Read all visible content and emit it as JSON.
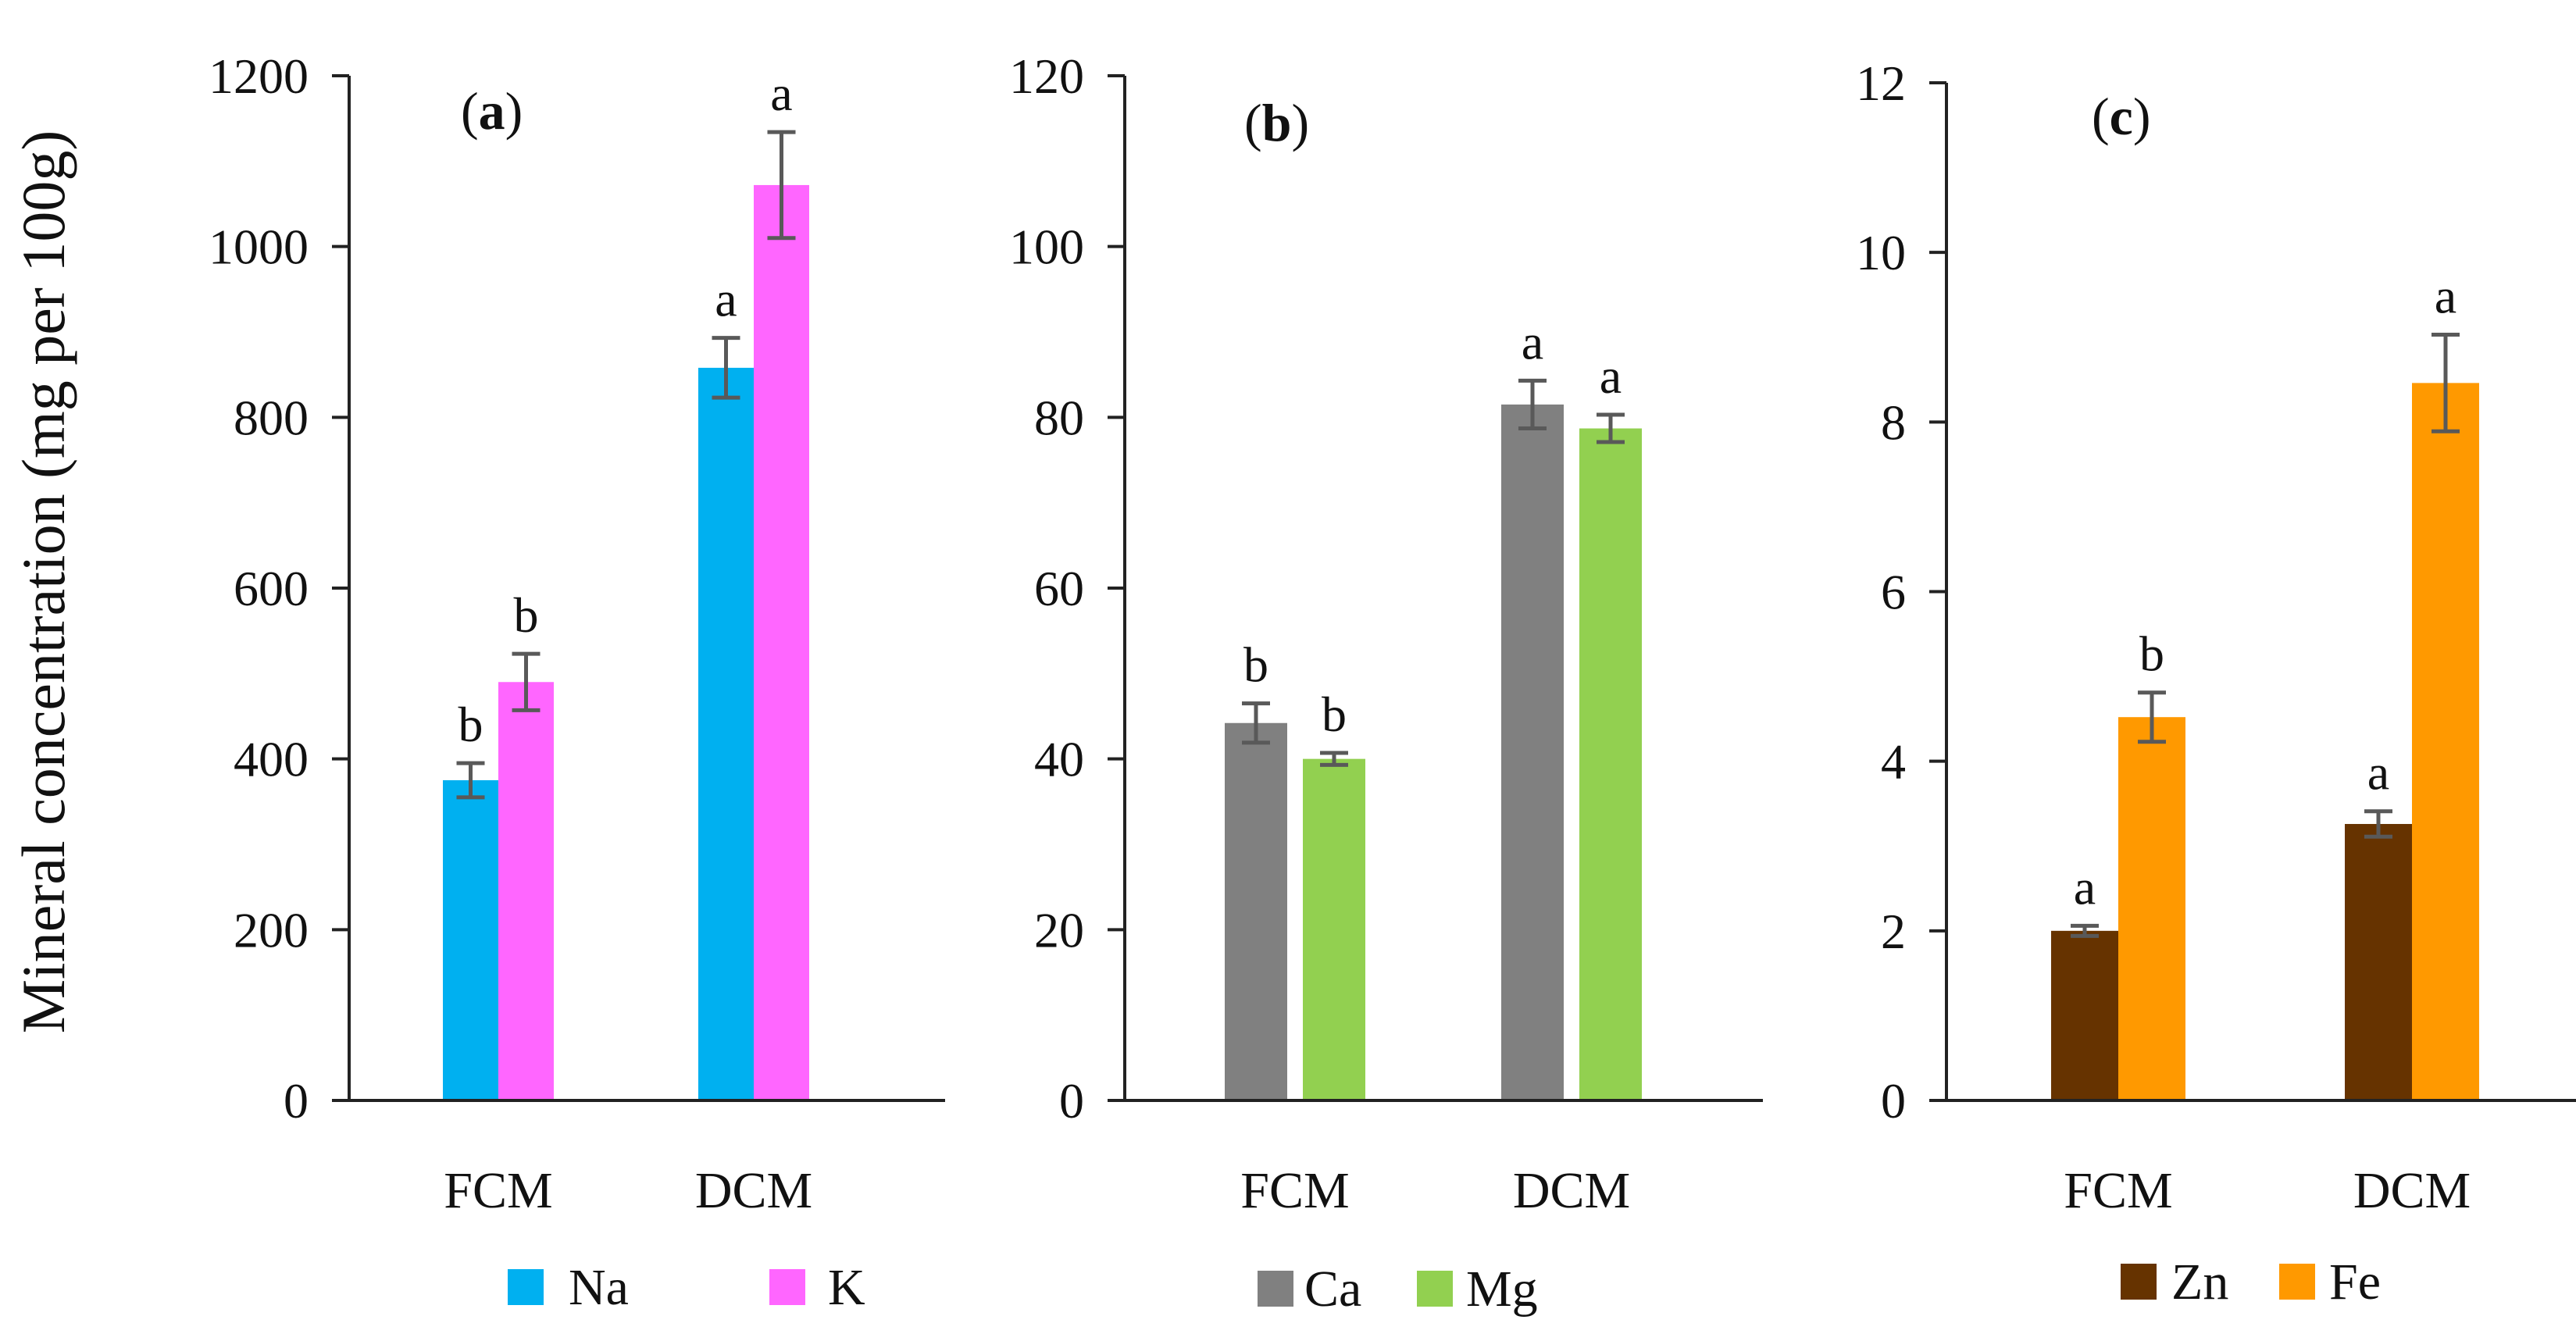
{
  "figure": {
    "ylabel": "Mineral concentration (mg per 100g)"
  },
  "chart_data": [
    {
      "type": "bar",
      "title": "(a)",
      "title_bold": "a",
      "categories": [
        "FCM",
        "DCM"
      ],
      "ylim": [
        0,
        1200
      ],
      "yticks": [
        0,
        200,
        400,
        600,
        800,
        1000,
        1200
      ],
      "ylabel": "Mineral concentration (mg per 100g)",
      "legend_position": "bottom",
      "series": [
        {
          "name": "Na",
          "color": "#00B0F0",
          "values": [
            375,
            858
          ],
          "errors": [
            20,
            35
          ],
          "letters": [
            "b",
            "a"
          ]
        },
        {
          "name": "K",
          "color": "#FF66FF",
          "values": [
            490,
            1072
          ],
          "errors": [
            33,
            62
          ],
          "letters": [
            "b",
            "a"
          ]
        }
      ]
    },
    {
      "type": "bar",
      "title": "(b)",
      "title_bold": "b",
      "categories": [
        "FCM",
        "DCM"
      ],
      "ylim": [
        0,
        120
      ],
      "yticks": [
        0,
        20,
        40,
        60,
        80,
        100,
        120
      ],
      "legend_position": "bottom",
      "series": [
        {
          "name": "Ca",
          "color": "#808080",
          "values": [
            44.2,
            81.5
          ],
          "errors": [
            2.3,
            2.8
          ],
          "letters": [
            "b",
            "a"
          ]
        },
        {
          "name": "Mg",
          "color": "#92D050",
          "values": [
            40.0,
            78.7
          ],
          "errors": [
            0.7,
            1.6
          ],
          "letters": [
            "b",
            "a"
          ]
        }
      ]
    },
    {
      "type": "bar",
      "title": "(c)",
      "title_bold": "c",
      "categories": [
        "FCM",
        "DCM"
      ],
      "ylim": [
        0,
        12
      ],
      "yticks": [
        0,
        2,
        4,
        6,
        8,
        10,
        12
      ],
      "legend_position": "bottom",
      "series": [
        {
          "name": "Zn",
          "color": "#663300",
          "values": [
            2.0,
            3.26
          ],
          "errors": [
            0.06,
            0.15
          ],
          "letters": [
            "a",
            "a"
          ]
        },
        {
          "name": "Fe",
          "color": "#FF9900",
          "values": [
            4.52,
            8.46
          ],
          "errors": [
            0.29,
            0.57
          ],
          "letters": [
            "b",
            "a"
          ]
        }
      ]
    }
  ]
}
